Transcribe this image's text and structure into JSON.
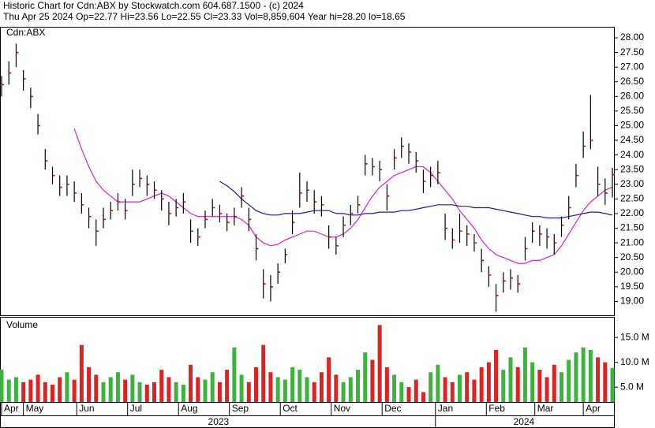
{
  "chart_data": [
    {
      "type": "ohlc",
      "title": "Historic Chart for Cdn:ABX by Stockwatch.com 604.687.1500 - (c) 2024",
      "subtitle": "Thu Apr 25 2024  Op=22.77  Hi=23.56  Lo=22.55  Cl=23.33  Vol=8,859,604  Year hi=28.20  lo=18.65",
      "label": "Cdn:ABX",
      "x": [
        0,
        3,
        6,
        9,
        12,
        15,
        18,
        21,
        24,
        27,
        30,
        33,
        36,
        39,
        42,
        45,
        48,
        51,
        54,
        57,
        60,
        63,
        66,
        69,
        72,
        75,
        78,
        81,
        84,
        87,
        90,
        93,
        96,
        99,
        102,
        105,
        108,
        111,
        114,
        117,
        120,
        123,
        126,
        129,
        132,
        135,
        138,
        141,
        144,
        147,
        150,
        153,
        156,
        159,
        162,
        165,
        168,
        171,
        174,
        177,
        180,
        183,
        186,
        189,
        192,
        195,
        198,
        201,
        204,
        207,
        210,
        213,
        216,
        219,
        222,
        225,
        228,
        231,
        234,
        237,
        240,
        243,
        246,
        249,
        252
      ],
      "xlim": [
        0,
        252
      ],
      "close": [
        26.4,
        26.8,
        27.5,
        26.6,
        26.0,
        25.0,
        23.8,
        23.3,
        22.9,
        23.0,
        22.7,
        22.3,
        21.9,
        21.4,
        21.8,
        22.1,
        22.4,
        22.1,
        23.0,
        23.2,
        23.0,
        22.8,
        22.5,
        22.0,
        22.2,
        22.4,
        21.4,
        21.2,
        21.8,
        22.2,
        22.0,
        21.7,
        21.9,
        22.6,
        21.8,
        20.8,
        19.6,
        19.5,
        20.0,
        20.6,
        21.7,
        22.7,
        22.8,
        22.4,
        22.3,
        21.2,
        20.9,
        21.6,
        22.0,
        22.3,
        23.7,
        23.6,
        23.5,
        22.6,
        23.9,
        24.3,
        24.1,
        23.8,
        23.1,
        23.3,
        23.4,
        21.5,
        21.1,
        21.4,
        21.3,
        21.0,
        20.4,
        19.9,
        19.2,
        19.7,
        19.8,
        19.6,
        20.8,
        21.4,
        21.3,
        21.2,
        21.0,
        21.6,
        22.2,
        23.3,
        24.3,
        24.5,
        23.0,
        22.7,
        23.33
      ],
      "high": [
        26.7,
        27.2,
        27.8,
        26.9,
        26.3,
        25.4,
        24.2,
        23.6,
        23.3,
        23.3,
        23.1,
        22.7,
        22.2,
        21.8,
        22.2,
        22.4,
        22.7,
        22.5,
        23.5,
        23.5,
        23.3,
        23.1,
        22.8,
        22.4,
        22.5,
        22.7,
        21.8,
        21.5,
        22.1,
        22.5,
        22.3,
        22.0,
        22.2,
        22.9,
        22.2,
        21.3,
        20.1,
        19.9,
        20.3,
        20.8,
        22.1,
        23.4,
        23.1,
        22.8,
        22.6,
        21.6,
        21.2,
        21.9,
        22.3,
        22.6,
        24.0,
        23.9,
        23.8,
        23.0,
        24.2,
        24.6,
        24.4,
        24.1,
        23.5,
        23.6,
        23.8,
        22.0,
        21.5,
        22.0,
        21.6,
        21.3,
        20.8,
        20.2,
        19.6,
        20.0,
        20.1,
        19.9,
        21.2,
        21.7,
        21.6,
        21.5,
        21.3,
        21.9,
        22.6,
        23.7,
        24.8,
        26.05,
        23.6,
        23.2,
        23.56
      ],
      "low": [
        26.0,
        26.4,
        27.0,
        26.2,
        25.6,
        24.7,
        23.5,
        23.0,
        22.6,
        22.6,
        22.4,
        22.0,
        21.5,
        20.9,
        21.5,
        21.8,
        22.1,
        21.8,
        22.6,
        22.9,
        22.6,
        22.5,
        22.1,
        21.6,
        21.9,
        22.0,
        21.0,
        20.9,
        21.5,
        21.9,
        21.7,
        21.4,
        21.6,
        22.2,
        21.4,
        20.4,
        19.1,
        19.0,
        19.6,
        20.3,
        21.3,
        22.2,
        22.4,
        22.0,
        21.9,
        20.8,
        20.6,
        21.2,
        21.6,
        22.0,
        23.3,
        23.3,
        23.1,
        22.1,
        23.5,
        23.9,
        23.7,
        23.4,
        22.7,
        22.9,
        23.0,
        21.1,
        20.8,
        21.0,
        20.9,
        20.7,
        20.0,
        19.5,
        18.65,
        19.3,
        19.4,
        19.3,
        20.4,
        21.0,
        20.9,
        20.8,
        20.6,
        21.2,
        21.8,
        22.9,
        23.9,
        24.2,
        22.6,
        22.3,
        22.55
      ],
      "bar_color": "#000000",
      "close_color": "#cc0000",
      "lines": [
        {
          "color": "#e020c8",
          "values": [
            null,
            null,
            null,
            null,
            null,
            null,
            null,
            null,
            null,
            null,
            24.9,
            24.2,
            23.6,
            23.1,
            22.8,
            22.6,
            22.4,
            22.4,
            22.4,
            22.4,
            22.5,
            22.6,
            22.7,
            22.6,
            22.4,
            22.2,
            22.0,
            21.9,
            21.9,
            21.9,
            21.9,
            21.9,
            21.9,
            21.8,
            21.6,
            21.2,
            21.0,
            20.9,
            20.95,
            21.1,
            21.2,
            21.3,
            21.4,
            21.4,
            21.3,
            21.2,
            21.2,
            21.3,
            21.5,
            21.8,
            22.2,
            22.6,
            22.9,
            23.1,
            23.3,
            23.4,
            23.5,
            23.6,
            23.6,
            23.4,
            23.1,
            22.8,
            22.5,
            22.1,
            21.8,
            21.5,
            21.1,
            20.8,
            20.6,
            20.5,
            20.4,
            20.3,
            20.3,
            20.4,
            20.4,
            20.5,
            20.6,
            20.9,
            21.3,
            21.7,
            22.1,
            22.4,
            22.6,
            22.8,
            22.9
          ]
        },
        {
          "color": "#1c1c9c",
          "values": [
            null,
            null,
            null,
            null,
            null,
            null,
            null,
            null,
            null,
            null,
            null,
            null,
            null,
            null,
            null,
            null,
            null,
            null,
            null,
            null,
            null,
            null,
            null,
            null,
            null,
            null,
            null,
            null,
            null,
            null,
            23.1,
            22.95,
            22.75,
            22.5,
            22.3,
            22.1,
            22.0,
            21.95,
            21.95,
            22.0,
            22.0,
            22.0,
            22.05,
            22.1,
            22.1,
            22.1,
            22.0,
            22.0,
            21.95,
            21.95,
            22.0,
            22.0,
            22.05,
            22.05,
            22.05,
            22.1,
            22.1,
            22.15,
            22.2,
            22.25,
            22.3,
            22.3,
            22.3,
            22.25,
            22.25,
            22.2,
            22.2,
            22.2,
            22.15,
            22.1,
            22.05,
            22.0,
            21.95,
            21.9,
            21.9,
            21.85,
            21.85,
            21.85,
            21.9,
            21.95,
            22.0,
            22.05,
            22.05,
            22.0,
            21.95
          ]
        }
      ],
      "ylim": [
        18.5,
        28.35
      ],
      "yticks": [
        {
          "value": 19,
          "label": "19.00"
        },
        {
          "value": 19.5,
          "label": "19.50"
        },
        {
          "value": 20,
          "label": "20.00"
        },
        {
          "value": 20.5,
          "label": "20.50"
        },
        {
          "value": 21,
          "label": "21.00"
        },
        {
          "value": 21.5,
          "label": "21.50"
        },
        {
          "value": 22,
          "label": "22.00"
        },
        {
          "value": 22.5,
          "label": "22.50"
        },
        {
          "value": 23,
          "label": "23.00"
        },
        {
          "value": 23.5,
          "label": "23.50"
        },
        {
          "value": 24,
          "label": "24.00"
        },
        {
          "value": 24.5,
          "label": "24.50"
        },
        {
          "value": 25,
          "label": "25.00"
        },
        {
          "value": 25.5,
          "label": "25.50"
        },
        {
          "value": 26,
          "label": "26.00"
        },
        {
          "value": 26.5,
          "label": "26.50"
        },
        {
          "value": 27,
          "label": "27.00"
        },
        {
          "value": 27.5,
          "label": "27.50"
        },
        {
          "value": 28,
          "label": "28.00"
        }
      ]
    },
    {
      "type": "bar",
      "title": "Volume",
      "values": [
        8.5,
        6.5,
        7.0,
        6.0,
        6.5,
        7.5,
        6.0,
        5.5,
        7.0,
        8.0,
        6.5,
        13.5,
        9.0,
        7.5,
        6.0,
        7.0,
        8.0,
        6.5,
        7.5,
        6.0,
        5.5,
        6.0,
        8.5,
        7.0,
        6.0,
        5.5,
        9.5,
        7.0,
        6.5,
        8.0,
        6.0,
        8.5,
        13.0,
        7.5,
        6.0,
        9.0,
        13.5,
        8.0,
        7.0,
        6.5,
        9.0,
        8.5,
        7.0,
        6.0,
        8.0,
        11.0,
        7.5,
        6.0,
        7.0,
        8.5,
        12.0,
        10.5,
        17.5,
        9.0,
        7.5,
        6.0,
        5.0,
        6.5,
        4.0,
        8.0,
        9.5,
        7.0,
        6.0,
        7.5,
        8.0,
        6.5,
        9.0,
        10.0,
        12.5,
        8.5,
        11.0,
        9.0,
        13.0,
        10.0,
        8.5,
        7.0,
        9.5,
        8.0,
        10.5,
        12.0,
        13.0,
        12.5,
        11.0,
        10.0,
        8.86
      ],
      "up_color": "#3cb43c",
      "down_color": "#dd2222",
      "ylim": [
        2,
        19
      ],
      "yticks": [
        {
          "value": 5,
          "label": "5.0 M"
        },
        {
          "value": 10,
          "label": "10.0 M"
        },
        {
          "value": 15,
          "label": "15.0 M"
        }
      ],
      "xticks": [
        {
          "value": 0,
          "label": "Apr"
        },
        {
          "value": 9,
          "label": "May"
        },
        {
          "value": 31,
          "label": "Jun"
        },
        {
          "value": 52,
          "label": "Jul"
        },
        {
          "value": 73,
          "label": "Aug"
        },
        {
          "value": 94,
          "label": "Sep"
        },
        {
          "value": 115,
          "label": "Oct"
        },
        {
          "value": 136,
          "label": "Nov"
        },
        {
          "value": 157,
          "label": "Dec"
        },
        {
          "value": 179,
          "label": "Jan"
        },
        {
          "value": 200,
          "label": "Feb"
        },
        {
          "value": 220,
          "label": "Mar"
        },
        {
          "value": 240,
          "label": "Apr"
        }
      ],
      "years": [
        "2023",
        "2024"
      ]
    }
  ]
}
